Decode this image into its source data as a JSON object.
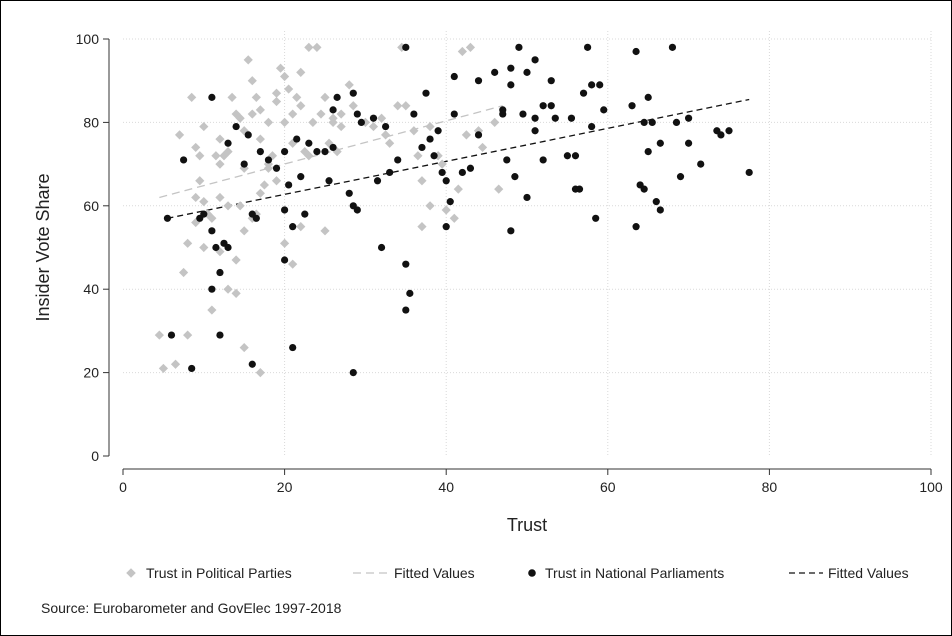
{
  "chart_data": {
    "type": "scatter",
    "xlabel": "Trust",
    "ylabel": "Insider Vote Share",
    "xlim": [
      0,
      100
    ],
    "ylim": [
      0,
      100
    ],
    "xticks": [
      0,
      20,
      40,
      60,
      80,
      100
    ],
    "yticks": [
      0,
      20,
      40,
      60,
      80,
      100
    ],
    "grid": true,
    "legend_position": "bottom",
    "note": "Source: Eurobarometer and GovElec 1997-2018",
    "series": [
      {
        "name": "Trust in Political Parties",
        "marker": "diamond",
        "color": "#c4c4c4",
        "points": [
          [
            4.5,
            29
          ],
          [
            5,
            21
          ],
          [
            6.5,
            22
          ],
          [
            8,
            29
          ],
          [
            7,
            77
          ],
          [
            9,
            74
          ],
          [
            8.5,
            86
          ],
          [
            10,
            79
          ],
          [
            9.5,
            72
          ],
          [
            9.5,
            66
          ],
          [
            10,
            61
          ],
          [
            10.5,
            58
          ],
          [
            11,
            57
          ],
          [
            11,
            35
          ],
          [
            9,
            56
          ],
          [
            8,
            51
          ],
          [
            7.5,
            44
          ],
          [
            12,
            70
          ],
          [
            12.5,
            72
          ],
          [
            12,
            76
          ],
          [
            13,
            73
          ],
          [
            13.5,
            86
          ],
          [
            14,
            82
          ],
          [
            14.5,
            81
          ],
          [
            15,
            78
          ],
          [
            15.5,
            95
          ],
          [
            15,
            69
          ],
          [
            16,
            90
          ],
          [
            16.5,
            86
          ],
          [
            16,
            82
          ],
          [
            17,
            83
          ],
          [
            17,
            76
          ],
          [
            17.5,
            65
          ],
          [
            17,
            63
          ],
          [
            18,
            80
          ],
          [
            18.5,
            72
          ],
          [
            18,
            70
          ],
          [
            19,
            85
          ],
          [
            19.5,
            93
          ],
          [
            19,
            87
          ],
          [
            20,
            91
          ],
          [
            20.5,
            88
          ],
          [
            20,
            80
          ],
          [
            21,
            82
          ],
          [
            21.5,
            86
          ],
          [
            22,
            92
          ],
          [
            22,
            84
          ],
          [
            23,
            98
          ],
          [
            24,
            98
          ],
          [
            23.5,
            80
          ],
          [
            24.5,
            82
          ],
          [
            25,
            86
          ],
          [
            25.5,
            75
          ],
          [
            26,
            81
          ],
          [
            26.5,
            73
          ],
          [
            27,
            82
          ],
          [
            27,
            79
          ],
          [
            28,
            89
          ],
          [
            28.5,
            84
          ],
          [
            30,
            80
          ],
          [
            31,
            79
          ],
          [
            32,
            81
          ],
          [
            32.5,
            77
          ],
          [
            33,
            75
          ],
          [
            34,
            84
          ],
          [
            34.5,
            98
          ],
          [
            35,
            84
          ],
          [
            36,
            78
          ],
          [
            36.5,
            72
          ],
          [
            37,
            66
          ],
          [
            38,
            79
          ],
          [
            39,
            72
          ],
          [
            39.5,
            70
          ],
          [
            40,
            59
          ],
          [
            41,
            57
          ],
          [
            41.5,
            64
          ],
          [
            42,
            97
          ],
          [
            43,
            98
          ],
          [
            42.5,
            77
          ],
          [
            44,
            78
          ],
          [
            44.5,
            74
          ],
          [
            46,
            80
          ],
          [
            46.5,
            64
          ],
          [
            15,
            26
          ],
          [
            17,
            20
          ],
          [
            13,
            40
          ],
          [
            14,
            47
          ],
          [
            15,
            54
          ],
          [
            16,
            57
          ],
          [
            16.5,
            58
          ],
          [
            20,
            51
          ],
          [
            21,
            46
          ],
          [
            22,
            55
          ],
          [
            25,
            54
          ],
          [
            18,
            69
          ],
          [
            19,
            66
          ],
          [
            21,
            75
          ],
          [
            22.5,
            73
          ],
          [
            23,
            72
          ],
          [
            26,
            80
          ],
          [
            37,
            55
          ],
          [
            38,
            60
          ],
          [
            13,
            60
          ],
          [
            14.5,
            60
          ],
          [
            12,
            49
          ],
          [
            12,
            62
          ],
          [
            14,
            39
          ],
          [
            10,
            50
          ],
          [
            9,
            62
          ],
          [
            11.5,
            72
          ]
        ]
      },
      {
        "name": "Fitted Values",
        "style": "line-dashed-light",
        "color": "#c4c4c4",
        "line": [
          [
            4.5,
            62
          ],
          [
            47,
            84
          ]
        ]
      },
      {
        "name": "Trust in National Parliaments",
        "marker": "circle",
        "color": "#111111",
        "points": [
          [
            5.5,
            57
          ],
          [
            6,
            29
          ],
          [
            8.5,
            21
          ],
          [
            7.5,
            71
          ],
          [
            9.5,
            57
          ],
          [
            10,
            58
          ],
          [
            11,
            86
          ],
          [
            11,
            54
          ],
          [
            11.5,
            50
          ],
          [
            11,
            40
          ],
          [
            12,
            44
          ],
          [
            12,
            29
          ],
          [
            12.5,
            51
          ],
          [
            13,
            75
          ],
          [
            13,
            50
          ],
          [
            14,
            79
          ],
          [
            15,
            70
          ],
          [
            15.5,
            77
          ],
          [
            16,
            58
          ],
          [
            16,
            22
          ],
          [
            16.5,
            57
          ],
          [
            17,
            73
          ],
          [
            18,
            71
          ],
          [
            19,
            69
          ],
          [
            20,
            73
          ],
          [
            20,
            59
          ],
          [
            20,
            47
          ],
          [
            20.5,
            65
          ],
          [
            21,
            26
          ],
          [
            21,
            55
          ],
          [
            21.5,
            76
          ],
          [
            22,
            67
          ],
          [
            22.5,
            58
          ],
          [
            23,
            75
          ],
          [
            24,
            73
          ],
          [
            25,
            73
          ],
          [
            25.5,
            66
          ],
          [
            26,
            74
          ],
          [
            26,
            83
          ],
          [
            26.5,
            86
          ],
          [
            28,
            63
          ],
          [
            28.5,
            60
          ],
          [
            28.5,
            87
          ],
          [
            29,
            82
          ],
          [
            29.5,
            80
          ],
          [
            29,
            59
          ],
          [
            28.5,
            20
          ],
          [
            31,
            81
          ],
          [
            31.5,
            66
          ],
          [
            32,
            50
          ],
          [
            32.5,
            79
          ],
          [
            33,
            68
          ],
          [
            34,
            71
          ],
          [
            35,
            46
          ],
          [
            35,
            35
          ],
          [
            35.5,
            39
          ],
          [
            35,
            98
          ],
          [
            36,
            82
          ],
          [
            37,
            74
          ],
          [
            37.5,
            87
          ],
          [
            38,
            76
          ],
          [
            38.5,
            72
          ],
          [
            39,
            78
          ],
          [
            39.5,
            68
          ],
          [
            40,
            66
          ],
          [
            40,
            55
          ],
          [
            40.5,
            61
          ],
          [
            41,
            82
          ],
          [
            41,
            91
          ],
          [
            42,
            68
          ],
          [
            43,
            69
          ],
          [
            44,
            90
          ],
          [
            46,
            92
          ],
          [
            47,
            83
          ],
          [
            47,
            82
          ],
          [
            47.5,
            71
          ],
          [
            48,
            93
          ],
          [
            48,
            89
          ],
          [
            48,
            54
          ],
          [
            48.5,
            67
          ],
          [
            49,
            98
          ],
          [
            49.5,
            82
          ],
          [
            50,
            62
          ],
          [
            50,
            92
          ],
          [
            51,
            95
          ],
          [
            51,
            78
          ],
          [
            51,
            81
          ],
          [
            52,
            84
          ],
          [
            52,
            71
          ],
          [
            53,
            84
          ],
          [
            53,
            90
          ],
          [
            53.5,
            81
          ],
          [
            55,
            72
          ],
          [
            55.5,
            81
          ],
          [
            56,
            72
          ],
          [
            56,
            64
          ],
          [
            56.5,
            64
          ],
          [
            57,
            87
          ],
          [
            57.5,
            98
          ],
          [
            58,
            79
          ],
          [
            58,
            89
          ],
          [
            58.5,
            57
          ],
          [
            59,
            89
          ],
          [
            59.5,
            83
          ],
          [
            63,
            84
          ],
          [
            63.5,
            97
          ],
          [
            63.5,
            55
          ],
          [
            64,
            65
          ],
          [
            64.5,
            64
          ],
          [
            64.5,
            80
          ],
          [
            65,
            86
          ],
          [
            65,
            73
          ],
          [
            65.5,
            80
          ],
          [
            66,
            61
          ],
          [
            66.5,
            59
          ],
          [
            66.5,
            75
          ],
          [
            68,
            98
          ],
          [
            68.5,
            80
          ],
          [
            69,
            67
          ],
          [
            70,
            81
          ],
          [
            70,
            75
          ],
          [
            71.5,
            70
          ],
          [
            73.5,
            78
          ],
          [
            74,
            77
          ],
          [
            75,
            78
          ],
          [
            77.5,
            68
          ],
          [
            44,
            77
          ]
        ]
      },
      {
        "name": "Fitted Values",
        "style": "line-dashed-dark",
        "color": "#111111",
        "line": [
          [
            5.5,
            57
          ],
          [
            77.5,
            85.5
          ]
        ]
      }
    ]
  }
}
